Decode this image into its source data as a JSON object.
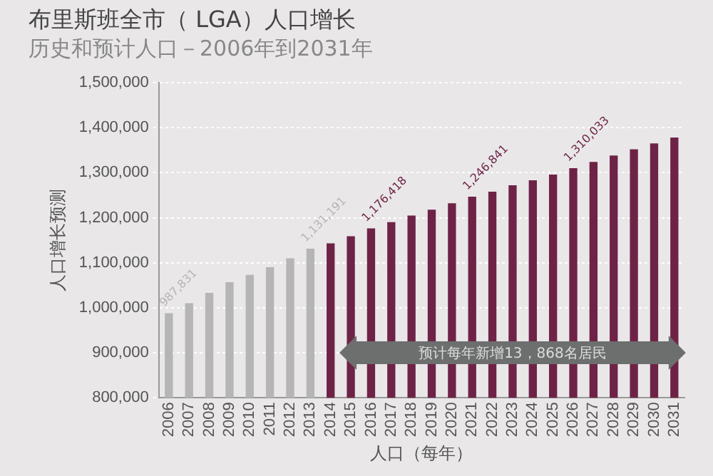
{
  "chart_data": {
    "type": "bar",
    "title": "布里斯班全市（ LGA）人口增长",
    "subtitle": "历史和预计人口－2006年到2031年",
    "xlabel": "人口（每年）",
    "ylabel": "人口增长预测",
    "categories": [
      "2006",
      "2007",
      "2008",
      "2009",
      "2010",
      "2011",
      "2012",
      "2013",
      "2014",
      "2015",
      "2016",
      "2017",
      "2018",
      "2019",
      "2020",
      "2021",
      "2022",
      "2023",
      "2024",
      "2025",
      "2026",
      "2027",
      "2028",
      "2029",
      "2030",
      "2031"
    ],
    "values": [
      987831,
      1010000,
      1033000,
      1057000,
      1073000,
      1090000,
      1110000,
      1131191,
      1143000,
      1159000,
      1176418,
      1190000,
      1205000,
      1218000,
      1232000,
      1246841,
      1258000,
      1272000,
      1283000,
      1296000,
      1310033,
      1324000,
      1338000,
      1352000,
      1365000,
      1378000
    ],
    "colors": [
      "#b5b5b5",
      "#b5b5b5",
      "#b5b5b5",
      "#b5b5b5",
      "#b5b5b5",
      "#b5b5b5",
      "#b5b5b5",
      "#b5b5b5",
      "#6e2346",
      "#6e2346",
      "#6e2346",
      "#6e2346",
      "#6e2346",
      "#6e2346",
      "#6e2346",
      "#6e2346",
      "#6e2346",
      "#6e2346",
      "#6e2346",
      "#6e2346",
      "#6e2346",
      "#6e2346",
      "#6e2346",
      "#6e2346",
      "#6e2346",
      "#6e2346"
    ],
    "value_labels": [
      "987,831",
      null,
      null,
      null,
      null,
      null,
      null,
      "1,131,191",
      null,
      null,
      "1,176,418",
      null,
      null,
      null,
      null,
      "1,246,841",
      null,
      null,
      null,
      null,
      "1,310,033",
      null,
      null,
      null,
      null,
      null
    ],
    "ylim": [
      800000,
      1500000
    ],
    "yticks": [
      {
        "value": 800000,
        "label": "800,000"
      },
      {
        "value": 900000,
        "label": "900,000"
      },
      {
        "value": 1000000,
        "label": "1,000,000"
      },
      {
        "value": 1100000,
        "label": "1,100,000"
      },
      {
        "value": 1200000,
        "label": "1,200,000"
      },
      {
        "value": 1300000,
        "label": "1,300,000"
      },
      {
        "value": 1400000,
        "label": "1,400,000"
      },
      {
        "value": 1500000,
        "label": "1,500,000"
      }
    ],
    "grid": "y",
    "legend": false,
    "annotations": [
      {
        "text": "预计每年新增13，868名居民",
        "x": "2023",
        "y": 900000
      }
    ]
  }
}
